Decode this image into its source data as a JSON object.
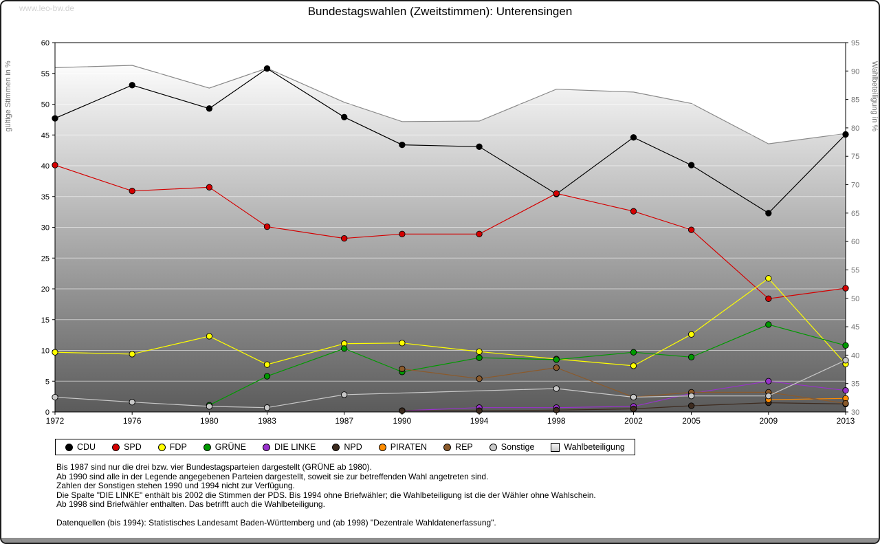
{
  "page": {
    "watermark": "www.leo-bw.de",
    "title": "Bundestagswahlen (Zweitstimmen): Unterensingen"
  },
  "chart_data": {
    "type": "line",
    "title": "Bundestagswahlen (Zweitstimmen): Unterensingen",
    "x": [
      1972,
      1976,
      1980,
      1983,
      1987,
      1990,
      1994,
      1998,
      2002,
      2005,
      2009,
      2013
    ],
    "left_axis": {
      "label": "gültige Stimmen in %",
      "min": 0,
      "max": 60,
      "step": 5
    },
    "right_axis": {
      "label": "Wahlbeteiligung in %",
      "min": 30,
      "max": 95,
      "step": 5
    },
    "grid": true,
    "legend_position": "bottom",
    "series": [
      {
        "name": "CDU",
        "color": "#000000",
        "axis": "left",
        "marker": "circle",
        "values": [
          47.7,
          53.1,
          49.3,
          55.8,
          47.9,
          43.4,
          43.1,
          35.4,
          44.6,
          40.1,
          32.3,
          45.1
        ]
      },
      {
        "name": "SPD",
        "color": "#d40000",
        "axis": "left",
        "marker": "circle",
        "values": [
          40.1,
          35.9,
          36.5,
          30.1,
          28.2,
          28.9,
          28.9,
          35.5,
          32.6,
          29.6,
          18.4,
          20.1
        ]
      },
      {
        "name": "FDP",
        "color": "#ffff00",
        "axis": "left",
        "marker": "circle",
        "values": [
          9.7,
          9.4,
          12.3,
          7.7,
          11.1,
          11.2,
          9.8,
          8.6,
          7.5,
          12.6,
          21.7,
          7.8
        ]
      },
      {
        "name": "GRÜNE",
        "color": "#009900",
        "axis": "left",
        "marker": "circle",
        "values": [
          null,
          null,
          1.1,
          5.8,
          10.3,
          6.5,
          8.8,
          8.5,
          9.7,
          8.9,
          14.2,
          10.8
        ]
      },
      {
        "name": "DIE LINKE",
        "color": "#9932cc",
        "axis": "left",
        "marker": "circle",
        "values": [
          null,
          null,
          null,
          null,
          null,
          0.2,
          0.7,
          0.7,
          0.9,
          3.0,
          5.0,
          3.5
        ]
      },
      {
        "name": "NPD",
        "color": "#3d2b1f",
        "axis": "left",
        "marker": "circle",
        "values": [
          null,
          null,
          null,
          null,
          null,
          0.2,
          0.2,
          0.3,
          0.5,
          1.0,
          1.5,
          1.3
        ]
      },
      {
        "name": "PIRATEN",
        "color": "#ff8c00",
        "axis": "left",
        "marker": "circle",
        "values": [
          null,
          null,
          null,
          null,
          null,
          null,
          null,
          null,
          null,
          null,
          2.0,
          2.2
        ]
      },
      {
        "name": "REP",
        "color": "#8b5a2b",
        "axis": "left",
        "marker": "circle",
        "values": [
          null,
          null,
          null,
          null,
          null,
          7.0,
          5.4,
          7.2,
          2.4,
          3.2,
          3.2,
          1.4
        ]
      },
      {
        "name": "Sonstige",
        "color": "#c8c8c8",
        "axis": "left",
        "marker": "circle",
        "values": [
          2.4,
          1.6,
          0.9,
          0.7,
          2.8,
          null,
          null,
          3.8,
          2.4,
          2.6,
          2.6,
          8.4
        ]
      },
      {
        "name": "Wahlbeteiligung",
        "color": "#8a8a8a",
        "axis": "right",
        "marker": "square",
        "area": true,
        "values": [
          90.6,
          91.0,
          87.0,
          90.5,
          84.5,
          81.1,
          81.2,
          86.8,
          86.3,
          84.3,
          77.2,
          79.0
        ]
      }
    ]
  },
  "footnotes": {
    "lines": [
      "Bis 1987 sind nur die drei bzw. vier Bundestagsparteien dargestellt (GRÜNE ab 1980).",
      "Ab 1990 sind alle in der Legende angegebenen Parteien dargestellt, soweit sie zur betreffenden Wahl angetreten sind.",
      "Zahlen der Sonstigen stehen 1990 und 1994 nicht zur Verfügung.",
      "Die Spalte \"DIE LINKE\" enthält bis 2002 die Stimmen der PDS. Bis 1994 ohne Briefwähler; die Wahlbeteiligung ist die der Wähler ohne Wahlschein.",
      "Ab 1998 sind Briefwähler enthalten. Das betrifft auch die Wahlbeteiligung."
    ],
    "source": "Datenquellen (bis 1994): Statistisches Landesamt Baden-Württemberg und (ab 1998) \"Dezentrale Wahldatenerfassung\"."
  }
}
